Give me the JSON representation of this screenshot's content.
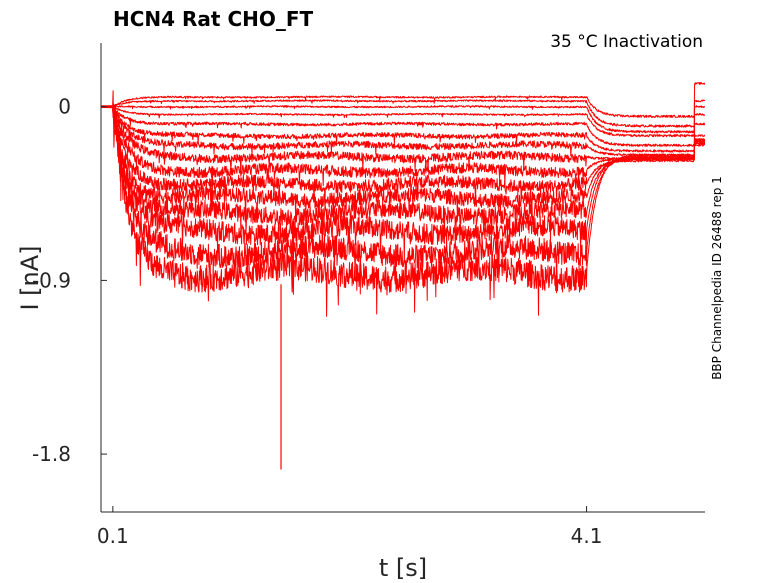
{
  "chart_data": {
    "type": "line",
    "title": "HCN4  Rat  CHO_FT",
    "subtitle": "35 °C  Inactivation",
    "side_label": "BBP Channelpedia ID 26488 rep 1",
    "xlabel": "t [s]",
    "ylabel": "I [nA]",
    "x_ticks": [
      "0.1",
      "4.1"
    ],
    "y_ticks": [
      "0",
      "-0.9",
      "-1.8"
    ],
    "xlim": [
      0.0,
      5.1
    ],
    "ylim": [
      -2.1,
      0.33
    ],
    "grid": false,
    "legend": "none",
    "series_color": "#ff0000",
    "protocol": {
      "step_start_s": 0.1,
      "step_end_s": 4.1,
      "end_s": 5.1
    },
    "series": [
      {
        "values": {
          "baseline": 0.0,
          "step": 0.05,
          "tail": -0.05,
          "end": 0.12
        }
      },
      {
        "values": {
          "baseline": 0.0,
          "step": 0.03,
          "tail": -0.1,
          "end": 0.03
        }
      },
      {
        "values": {
          "baseline": 0.0,
          "step": 0.0,
          "tail": -0.13,
          "end": 0.0
        }
      },
      {
        "values": {
          "baseline": 0.0,
          "step": -0.04,
          "tail": -0.15,
          "end": -0.04
        }
      },
      {
        "values": {
          "baseline": 0.0,
          "step": -0.09,
          "tail": -0.2,
          "end": -0.09
        }
      },
      {
        "values": {
          "baseline": 0.0,
          "step": -0.15,
          "tail": -0.23,
          "end": -0.15
        }
      },
      {
        "values": {
          "baseline": 0.0,
          "step": -0.2,
          "tail": -0.25,
          "end": -0.17
        }
      },
      {
        "values": {
          "baseline": 0.0,
          "step": -0.26,
          "tail": -0.27,
          "end": -0.18
        }
      },
      {
        "values": {
          "baseline": 0.0,
          "step": -0.33,
          "tail": -0.27,
          "end": -0.19
        }
      },
      {
        "values": {
          "baseline": 0.0,
          "step": -0.4,
          "tail": -0.28,
          "end": -0.2
        }
      },
      {
        "values": {
          "baseline": 0.0,
          "step": -0.47,
          "tail": -0.27,
          "end": -0.19
        }
      },
      {
        "values": {
          "baseline": 0.0,
          "step": -0.55,
          "tail": -0.27,
          "end": -0.19
        }
      },
      {
        "values": {
          "baseline": 0.0,
          "step": -0.64,
          "tail": -0.26,
          "end": -0.18
        }
      },
      {
        "values": {
          "baseline": 0.0,
          "step": -0.75,
          "tail": -0.26,
          "end": -0.17
        }
      },
      {
        "values": {
          "baseline": 0.0,
          "step": -0.86,
          "tail": -0.25,
          "end": -0.17
        }
      }
    ],
    "annotations": [
      {
        "x": 1.52,
        "y": -1.88,
        "text": ""
      }
    ]
  }
}
